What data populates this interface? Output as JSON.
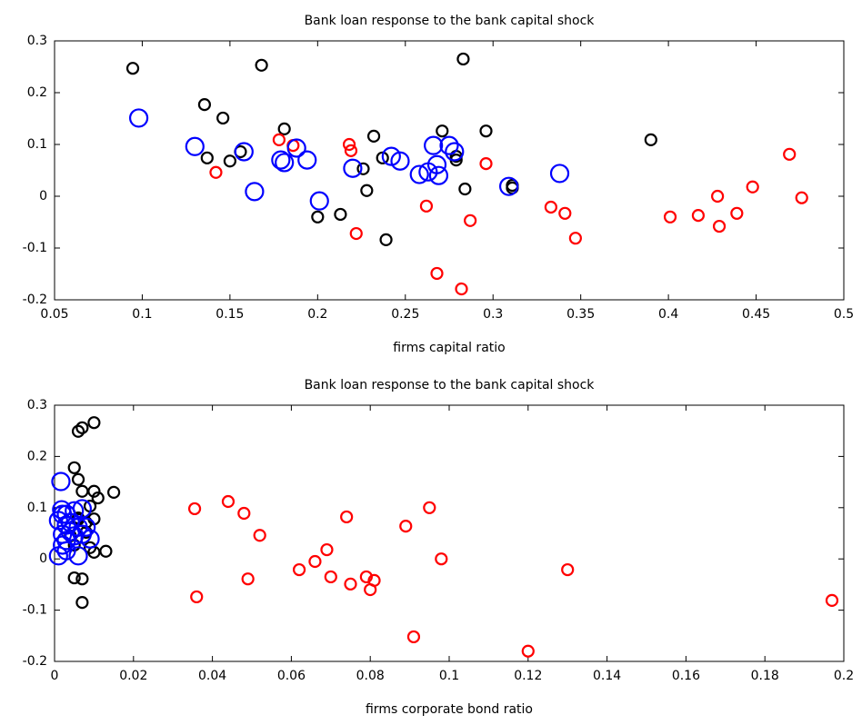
{
  "chart_data": [
    {
      "type": "scatter",
      "title": "Bank loan response to the bank capital shock",
      "x_label": "firms capital ratio",
      "xlim": [
        0.05,
        0.5
      ],
      "xticks": [
        0.05,
        0.1,
        0.15,
        0.2,
        0.25,
        0.3,
        0.35,
        0.4,
        0.45,
        0.5
      ],
      "ylim": [
        -0.2,
        0.3
      ],
      "yticks": [
        -0.2,
        -0.1,
        0,
        0.1,
        0.2,
        0.3
      ],
      "grid": false,
      "series": [
        {
          "color": "#000000",
          "marker_size": "small",
          "x": [
            0.0946,
            0.1355,
            0.146,
            0.168,
            0.137,
            0.15,
            0.156,
            0.181,
            0.2,
            0.213,
            0.232,
            0.226,
            0.228,
            0.237,
            0.239,
            0.271,
            0.279,
            0.279,
            0.283,
            0.284,
            0.296,
            0.311,
            0.311,
            0.39
          ],
          "values": [
            0.247,
            0.177,
            0.151,
            0.253,
            0.074,
            0.068,
            0.086,
            0.13,
            -0.04,
            -0.035,
            0.116,
            0.053,
            0.011,
            0.074,
            -0.084,
            0.126,
            0.077,
            0.07,
            0.265,
            0.014,
            0.126,
            0.021,
            0.016,
            0.109
          ]
        },
        {
          "color": "#ff0000",
          "marker_size": "small",
          "x": [
            0.142,
            0.178,
            0.186,
            0.218,
            0.219,
            0.222,
            0.262,
            0.268,
            0.282,
            0.287,
            0.296,
            0.333,
            0.341,
            0.347,
            0.401,
            0.417,
            0.428,
            0.429,
            0.439,
            0.448,
            0.469,
            0.476
          ],
          "values": [
            0.046,
            0.109,
            0.098,
            0.1,
            0.088,
            -0.072,
            -0.019,
            -0.149,
            -0.179,
            -0.047,
            0.063,
            -0.021,
            -0.033,
            -0.081,
            -0.04,
            -0.037,
            0.0,
            -0.058,
            -0.033,
            0.018,
            0.081,
            -0.003
          ]
        },
        {
          "color": "#0000ff",
          "marker_size": "large",
          "x": [
            0.098,
            0.13,
            0.158,
            0.164,
            0.179,
            0.181,
            0.188,
            0.194,
            0.201,
            0.22,
            0.242,
            0.247,
            0.258,
            0.263,
            0.266,
            0.268,
            0.269,
            0.275,
            0.278,
            0.309,
            0.338
          ],
          "values": [
            0.151,
            0.096,
            0.086,
            0.009,
            0.07,
            0.065,
            0.093,
            0.07,
            -0.009,
            0.054,
            0.077,
            0.068,
            0.042,
            0.047,
            0.098,
            0.061,
            0.04,
            0.098,
            0.086,
            0.019,
            0.044
          ]
        }
      ]
    },
    {
      "type": "scatter",
      "title": "Bank loan response to the bank capital shock",
      "x_label": "firms corporate bond ratio",
      "xlim": [
        0,
        0.2
      ],
      "xticks": [
        0,
        0.02,
        0.04,
        0.06,
        0.08,
        0.1,
        0.12,
        0.14,
        0.16,
        0.18,
        0.2
      ],
      "ylim": [
        -0.2,
        0.3
      ],
      "yticks": [
        -0.2,
        -0.1,
        0,
        0.1,
        0.2,
        0.3
      ],
      "grid": false,
      "series": [
        {
          "color": "#000000",
          "marker_size": "small",
          "x": [
            0.006,
            0.007,
            0.01,
            0.005,
            0.006,
            0.007,
            0.01,
            0.015,
            0.011,
            0.009,
            0.006,
            0.008,
            0.01,
            0.006,
            0.008,
            0.009,
            0.013,
            0.01,
            0.005,
            0.007,
            0.007,
            0.004,
            0.005,
            0.008
          ],
          "values": [
            0.249,
            0.256,
            0.266,
            0.178,
            0.155,
            0.132,
            0.132,
            0.13,
            0.119,
            0.103,
            0.08,
            0.071,
            0.078,
            0.077,
            0.052,
            0.022,
            0.015,
            0.013,
            -0.037,
            -0.039,
            -0.085,
            0.045,
            0.027,
            0.071
          ]
        },
        {
          "color": "#ff0000",
          "marker_size": "small",
          "x": [
            0.0355,
            0.036,
            0.044,
            0.048,
            0.049,
            0.052,
            0.062,
            0.066,
            0.069,
            0.07,
            0.074,
            0.075,
            0.079,
            0.08,
            0.081,
            0.089,
            0.091,
            0.095,
            0.098,
            0.12,
            0.13,
            0.197
          ],
          "values": [
            0.098,
            -0.074,
            0.112,
            0.089,
            -0.039,
            0.046,
            -0.021,
            -0.005,
            0.018,
            -0.035,
            0.082,
            -0.049,
            -0.035,
            -0.06,
            -0.042,
            0.064,
            -0.152,
            0.1,
            0.0,
            -0.18,
            -0.021,
            -0.081
          ]
        },
        {
          "color": "#0000ff",
          "marker_size": "large",
          "x": [
            0.0016,
            0.0018,
            0.002,
            0.003,
            0.005,
            0.003,
            0.001,
            0.002,
            0.001,
            0.004,
            0.006,
            0.005,
            0.007,
            0.003,
            0.007,
            0.004,
            0.009,
            0.002,
            0.006,
            0.003,
            0.008
          ],
          "values": [
            0.151,
            0.096,
            0.087,
            0.087,
            0.094,
            0.066,
            0.075,
            0.027,
            0.006,
            0.071,
            0.062,
            0.045,
            0.048,
            0.036,
            0.098,
            0.053,
            0.039,
            0.048,
            0.006,
            0.016,
            0.062
          ]
        }
      ]
    }
  ]
}
